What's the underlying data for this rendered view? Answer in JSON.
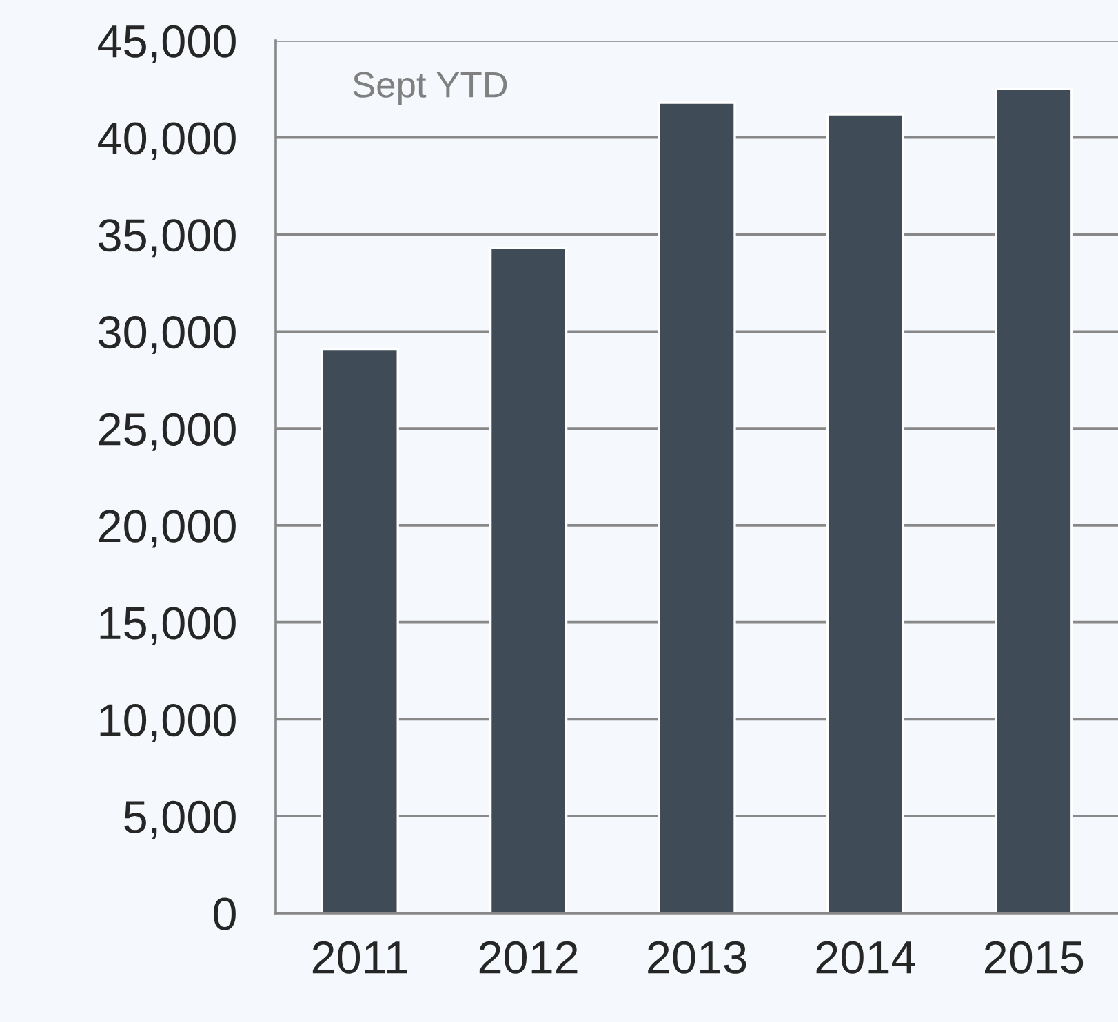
{
  "chart_data": {
    "type": "bar",
    "categories": [
      "2011",
      "2012",
      "2013",
      "2014",
      "2015"
    ],
    "values": [
      29100,
      34300,
      41800,
      41200,
      42500
    ],
    "color": "#404b58",
    "ylim": [
      0,
      45000
    ],
    "yticks": [
      {
        "value": 0,
        "label": "0"
      },
      {
        "value": 5000,
        "label": "5,000"
      },
      {
        "value": 10000,
        "label": "10,000"
      },
      {
        "value": 15000,
        "label": "15,000"
      },
      {
        "value": 20000,
        "label": "20,000"
      },
      {
        "value": 25000,
        "label": "25,000"
      },
      {
        "value": 30000,
        "label": "30,000"
      },
      {
        "value": 35000,
        "label": "35,000"
      },
      {
        "value": 40000,
        "label": "40,000"
      },
      {
        "value": 45000,
        "label": "45,000"
      }
    ],
    "grid": "y",
    "annotations": [
      "Sept YTD"
    ]
  }
}
